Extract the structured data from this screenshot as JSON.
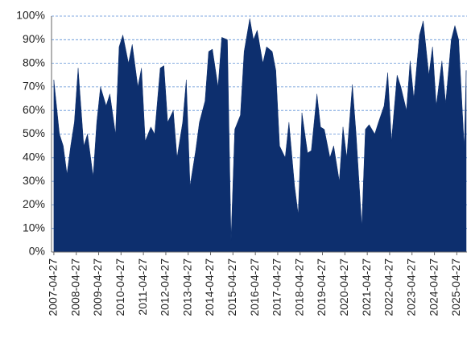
{
  "chart_data": {
    "type": "area",
    "color": "#0d2f6e",
    "grid": true,
    "x": [
      "2007-04-27",
      "2007-07-27",
      "2007-09-27",
      "2007-11-27",
      "2008-01-27",
      "2008-03-27",
      "2008-05-27",
      "2008-08-27",
      "2008-10-27",
      "2009-01-27",
      "2009-03-27",
      "2009-05-27",
      "2009-08-27",
      "2009-10-27",
      "2010-01-27",
      "2010-03-27",
      "2010-05-27",
      "2010-08-27",
      "2010-10-27",
      "2011-01-27",
      "2011-03-27",
      "2011-05-27",
      "2011-08-27",
      "2011-10-27",
      "2012-01-27",
      "2012-03-27",
      "2012-05-27",
      "2012-08-27",
      "2012-10-27",
      "2013-01-27",
      "2013-03-27",
      "2013-05-27",
      "2013-08-27",
      "2013-10-27",
      "2014-01-27",
      "2014-03-27",
      "2014-05-27",
      "2014-08-27",
      "2014-10-27",
      "2015-01-27",
      "2015-03-27",
      "2015-05-27",
      "2015-08-27",
      "2015-10-27",
      "2016-01-27",
      "2016-03-27",
      "2016-05-27",
      "2016-08-27",
      "2016-10-27",
      "2017-01-27",
      "2017-03-27",
      "2017-05-27",
      "2017-08-27",
      "2017-10-27",
      "2018-01-27",
      "2018-03-27",
      "2018-05-27",
      "2018-08-27",
      "2018-10-27",
      "2019-01-27",
      "2019-03-27",
      "2019-05-27",
      "2019-08-27",
      "2019-10-27",
      "2020-01-27",
      "2020-03-27",
      "2020-05-27",
      "2020-08-27",
      "2020-10-27",
      "2021-01-27",
      "2021-03-27",
      "2021-05-27",
      "2021-08-27",
      "2021-10-27",
      "2022-01-27",
      "2022-03-27",
      "2022-05-27",
      "2022-08-27",
      "2022-10-27",
      "2023-01-27",
      "2023-03-27",
      "2023-05-27",
      "2023-08-27",
      "2023-10-27",
      "2024-01-27",
      "2024-03-27",
      "2024-05-27",
      "2024-08-27",
      "2024-10-27",
      "2025-01-27",
      "2025-03-27",
      "2025-05-27",
      "2025-08-27",
      "2025-09-27"
    ],
    "values": [
      73,
      50,
      45,
      33,
      45,
      55,
      78,
      45,
      50,
      32,
      55,
      70,
      62,
      67,
      50,
      87,
      92,
      80,
      88,
      70,
      78,
      47,
      53,
      50,
      78,
      79,
      55,
      60,
      40,
      55,
      73,
      28,
      43,
      55,
      64,
      85,
      86,
      70,
      91,
      90,
      5,
      52,
      58,
      85,
      99,
      90,
      94,
      80,
      87,
      85,
      77,
      45,
      40,
      55,
      28,
      16,
      59,
      42,
      43,
      67,
      53,
      52,
      40,
      45,
      30,
      53,
      40,
      71,
      50,
      11,
      52,
      54,
      50,
      55,
      62,
      76,
      47,
      75,
      70,
      60,
      81,
      65,
      92,
      98,
      75,
      87,
      62,
      81,
      63,
      90,
      96,
      90,
      44,
      77
    ],
    "xlim": [
      "2007-03-20",
      "2025-10-10"
    ],
    "xticks": [
      "2007-04-27",
      "2008-04-27",
      "2009-04-27",
      "2010-04-27",
      "2011-04-27",
      "2012-04-27",
      "2013-04-27",
      "2014-04-27",
      "2015-04-27",
      "2016-04-27",
      "2017-04-27",
      "2018-04-27",
      "2019-04-27",
      "2020-04-27",
      "2021-04-27",
      "2022-04-27",
      "2023-04-27",
      "2024-04-27",
      "2025-04-27"
    ],
    "ylim": [
      0,
      100
    ],
    "yticks": [
      {
        "value": 0,
        "label": "0%"
      },
      {
        "value": 10,
        "label": "10%"
      },
      {
        "value": 20,
        "label": "20%"
      },
      {
        "value": 30,
        "label": "30%"
      },
      {
        "value": 40,
        "label": "40%"
      },
      {
        "value": 50,
        "label": "50%"
      },
      {
        "value": 60,
        "label": "60%"
      },
      {
        "value": 70,
        "label": "70%"
      },
      {
        "value": 80,
        "label": "80%"
      },
      {
        "value": 90,
        "label": "90%"
      },
      {
        "value": 100,
        "label": "100%"
      }
    ]
  }
}
